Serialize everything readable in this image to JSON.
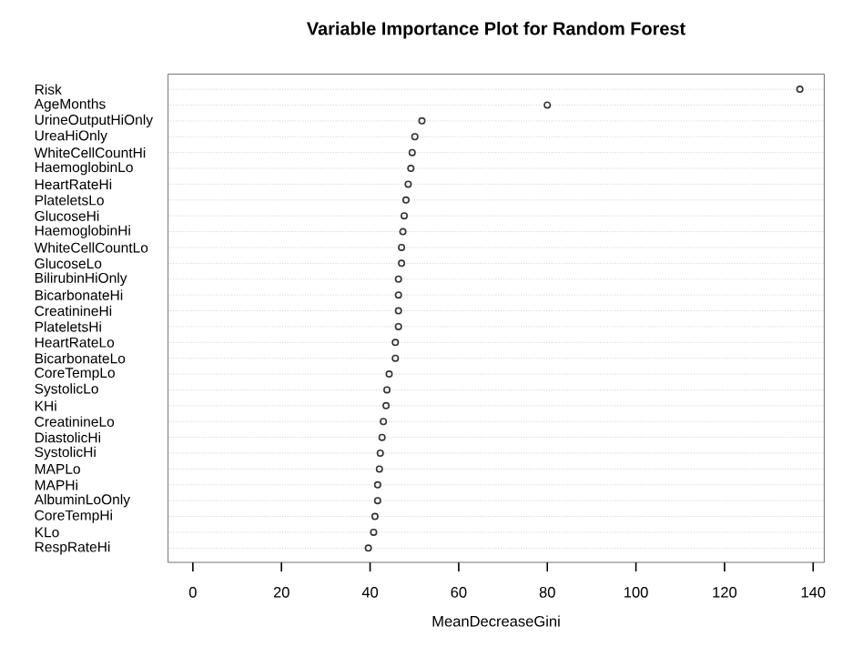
{
  "chart_data": {
    "type": "scatter",
    "title": "Variable Importance Plot for Random Forest",
    "xlabel": "MeanDecreaseGini",
    "orientation": "horizontal",
    "categories": [
      "Risk",
      "AgeMonths",
      "UrineOutputHiOnly",
      "UreaHiOnly",
      "WhiteCellCountHi",
      "HaemoglobinLo",
      "HeartRateHi",
      "PlateletsLo",
      "GlucoseHi",
      "HaemoglobinHi",
      "WhiteCellCountLo",
      "GlucoseLo",
      "BilirubinHiOnly",
      "BicarbonateHi",
      "CreatinineHi",
      "PlateletsHi",
      "HeartRateLo",
      "BicarbonateLo",
      "CoreTempLo",
      "SystolicLo",
      "KHi",
      "CreatinineLo",
      "DiastolicHi",
      "SystolicHi",
      "MAPLo",
      "MAPHi",
      "AlbuminLoOnly",
      "CoreTempHi",
      "KLo",
      "RespRateHi"
    ],
    "values": [
      137,
      80,
      51.7,
      50.1,
      49.5,
      49.2,
      48.6,
      48.1,
      47.7,
      47.4,
      47.1,
      47.1,
      46.4,
      46.4,
      46.4,
      46.4,
      45.7,
      45.7,
      44.3,
      43.8,
      43.6,
      43.0,
      42.7,
      42.3,
      42.1,
      41.7,
      41.7,
      41.1,
      40.8,
      39.6
    ],
    "color": "#333333",
    "marker": "circle",
    "grid": "y",
    "xlim": [
      -5.6,
      142.5
    ],
    "xticks": [
      0,
      20,
      40,
      60,
      80,
      100,
      120,
      140
    ]
  }
}
